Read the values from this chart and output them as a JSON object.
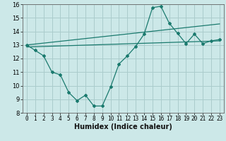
{
  "xlabel": "Humidex (Indice chaleur)",
  "xlim": [
    -0.5,
    23.5
  ],
  "ylim": [
    8,
    16
  ],
  "xticks": [
    0,
    1,
    2,
    3,
    4,
    5,
    6,
    7,
    8,
    9,
    10,
    11,
    12,
    13,
    14,
    15,
    16,
    17,
    18,
    19,
    20,
    21,
    22,
    23
  ],
  "yticks": [
    8,
    9,
    10,
    11,
    12,
    13,
    14,
    15,
    16
  ],
  "bg_color": "#cce8e8",
  "grid_color": "#aacccc",
  "line_color": "#1a7a6e",
  "line1_x": [
    0,
    1,
    2,
    3,
    4,
    5,
    6,
    7,
    8,
    9,
    10,
    11,
    12,
    13,
    14,
    15,
    16,
    17,
    18,
    19,
    20,
    21,
    22,
    23
  ],
  "line1_y": [
    13.0,
    12.6,
    12.2,
    11.0,
    10.8,
    9.5,
    8.9,
    9.3,
    8.5,
    8.5,
    9.9,
    11.6,
    12.2,
    12.9,
    13.8,
    15.75,
    15.85,
    14.6,
    13.85,
    13.1,
    13.8,
    13.1,
    13.3,
    13.4
  ],
  "line2_x": [
    0,
    23
  ],
  "line2_y": [
    13.0,
    14.55
  ],
  "line3_x": [
    0,
    23
  ],
  "line3_y": [
    12.85,
    13.3
  ],
  "xlabel_fontsize": 7,
  "tick_fontsize": 5.5
}
